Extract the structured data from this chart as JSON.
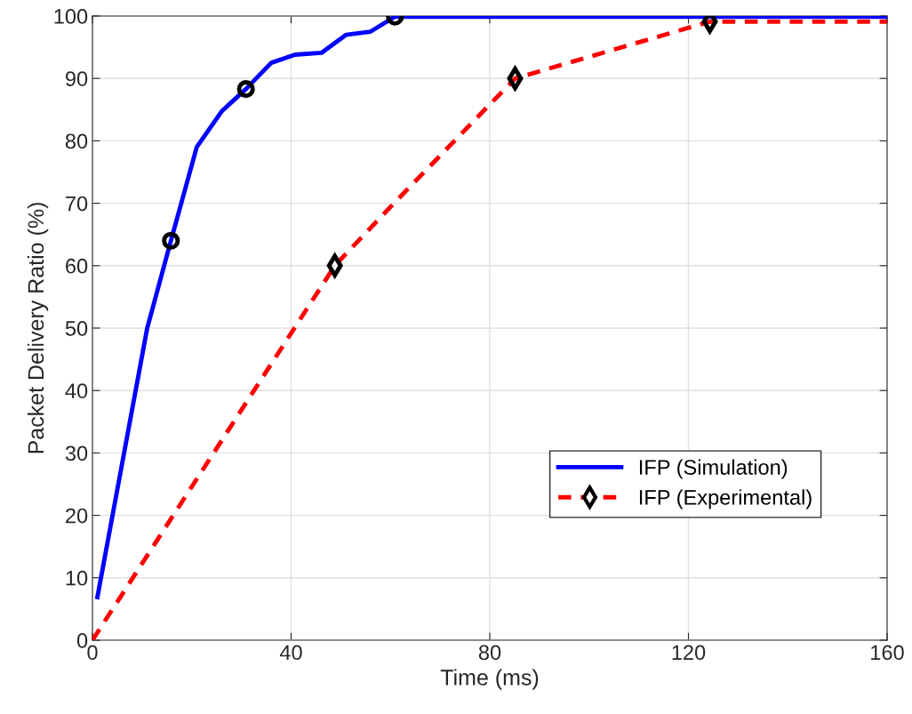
{
  "chart_data": {
    "type": "line",
    "xlabel": "Time (ms)",
    "ylabel": "Packet Delivery Ratio (%)",
    "xlim": [
      0,
      160
    ],
    "xticks": [
      0,
      40,
      80,
      120,
      160
    ],
    "ylim": [
      0,
      100
    ],
    "yticks": [
      0,
      10,
      20,
      30,
      40,
      50,
      60,
      70,
      80,
      90,
      100
    ],
    "grid": true,
    "legend": "bottom right",
    "series": [
      {
        "name": "IFP (Simulation)",
        "color": "#0000ff",
        "line_style": "solid",
        "marker": "none",
        "x": [
          1,
          11,
          15.8,
          21,
          26.1,
          30.9,
          36,
          40.8,
          46.1,
          51.1,
          56,
          60.9,
          160
        ],
        "values": [
          6.9,
          49.9,
          64,
          79,
          84.8,
          88.3,
          92.5,
          93.8,
          94.1,
          97,
          97.5,
          99.9,
          99.9
        ]
      },
      {
        "type": "scatter",
        "color": "#000000",
        "marker": "circle",
        "x": [
          15.8,
          30.9,
          60.9
        ],
        "values": [
          64,
          88.3,
          99.9
        ]
      },
      {
        "name": "IFP (Experimental)",
        "color": "#ff0000",
        "line_style": "dashed",
        "x": [
          0,
          40.1,
          48.8,
          60.7,
          85.1,
          124.3,
          160
        ],
        "values": [
          0,
          49.3,
          60,
          70,
          90,
          99.1,
          99.1
        ]
      },
      {
        "type": "scatter",
        "color": "#000000",
        "marker": "diamond",
        "x": [
          48.8,
          85.1,
          124.3
        ],
        "values": [
          60,
          90,
          99.1
        ]
      }
    ]
  }
}
